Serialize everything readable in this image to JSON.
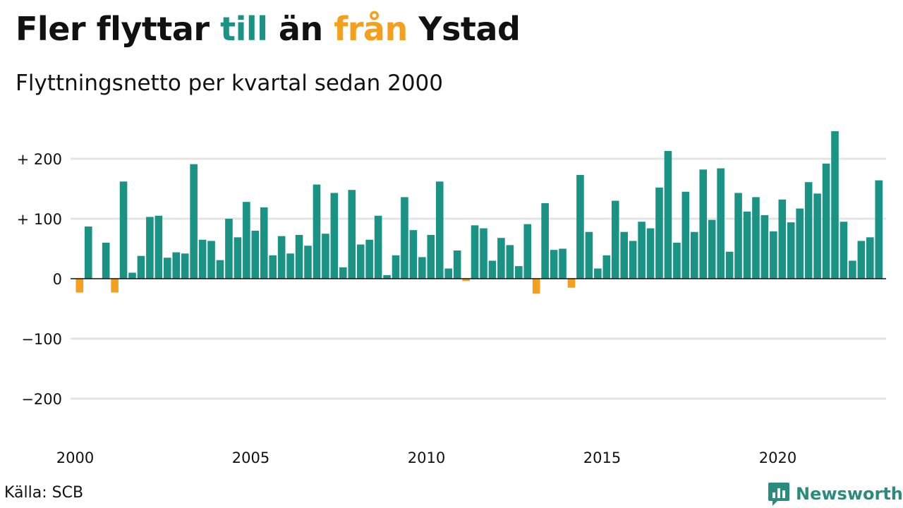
{
  "title": {
    "part1": "Fler flyttar ",
    "part2": "till",
    "part3": " än ",
    "part4": "från",
    "part5": " Ystad"
  },
  "subtitle": "Flyttningsnetto per kvartal sedan 2000",
  "source": "Källa: SCB",
  "brand": {
    "name": "Newsworthy",
    "icon": "newsworthy-logo-icon"
  },
  "colors": {
    "positive": "#1a9384",
    "negative": "#f5a01c",
    "grid": "#e4e4e4",
    "zero_line": "#111111"
  },
  "chart_data": {
    "type": "bar",
    "ylim": [
      -250,
      250
    ],
    "yticks": [
      {
        "value": 200,
        "label": "+ 200"
      },
      {
        "value": 100,
        "label": "+ 100"
      },
      {
        "value": 0,
        "label": "0"
      },
      {
        "value": -100,
        "label": "−100"
      },
      {
        "value": -200,
        "label": "−200"
      }
    ],
    "xticks": [
      "2000",
      "2005",
      "2010",
      "2015",
      "2020"
    ],
    "grid": true,
    "start": "2000 Q1",
    "values": [
      -23,
      87,
      0,
      60,
      -23,
      162,
      10,
      38,
      103,
      105,
      35,
      44,
      42,
      191,
      65,
      63,
      31,
      100,
      69,
      128,
      80,
      119,
      39,
      71,
      42,
      73,
      55,
      157,
      75,
      143,
      19,
      148,
      57,
      65,
      105,
      6,
      39,
      136,
      81,
      36,
      73,
      162,
      17,
      47,
      -4,
      89,
      84,
      30,
      68,
      56,
      21,
      91,
      -25,
      126,
      48,
      50,
      -15,
      173,
      78,
      17,
      39,
      130,
      78,
      63,
      95,
      84,
      152,
      213,
      60,
      145,
      78,
      182,
      98,
      184,
      45,
      143,
      112,
      136,
      106,
      79,
      132,
      94,
      117,
      161,
      142,
      192,
      246,
      95,
      30,
      63,
      69,
      164
    ]
  }
}
